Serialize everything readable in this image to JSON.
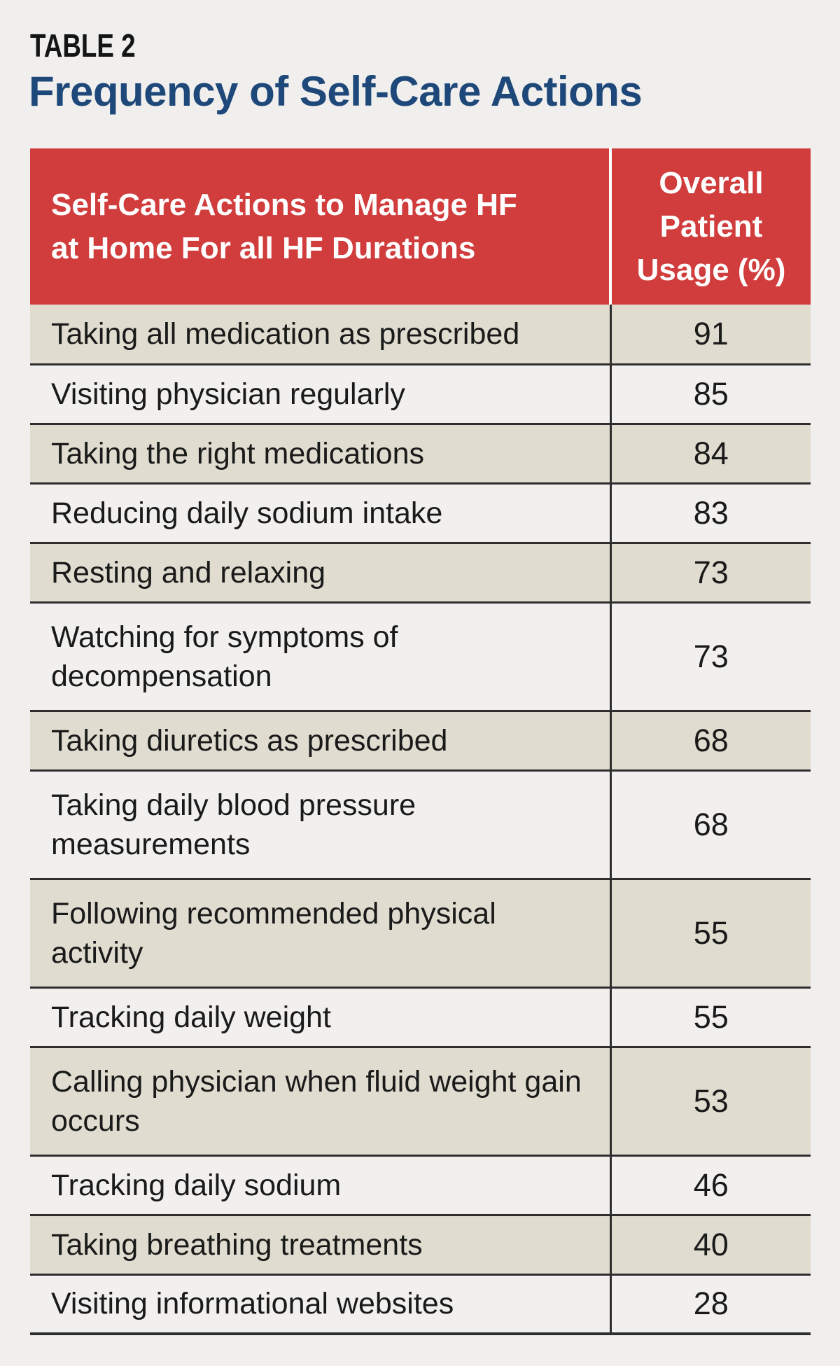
{
  "page": {
    "kicker": "TABLE 2",
    "title": "Frequency of Self-Care Actions"
  },
  "colors": {
    "header_bg": "#d13c3c",
    "header_text": "#ffffff",
    "title_blue": "#1e4879",
    "row_shaded": "#e0ddd0",
    "row_plain": "#f1f0ee",
    "grid_line": "#2e2e2e",
    "page_bg": "#f0efed"
  },
  "table": {
    "header": {
      "col1_lines": [
        "Self-Care Actions to Manage HF",
        "at Home For all HF Durations"
      ],
      "col2_lines": [
        "Overall",
        "Patient",
        "Usage (%)"
      ]
    },
    "rows": [
      {
        "action": "Taking all medication as prescribed",
        "usage": "91"
      },
      {
        "action": "Visiting physician regularly",
        "usage": "85"
      },
      {
        "action": "Taking the right medications",
        "usage": "84"
      },
      {
        "action": "Reducing daily sodium intake",
        "usage": "83"
      },
      {
        "action": "Resting and relaxing",
        "usage": "73"
      },
      {
        "action": "Watching for symptoms of decompensation",
        "usage": "73"
      },
      {
        "action": "Taking diuretics as prescribed",
        "usage": "68"
      },
      {
        "action": "Taking daily blood pressure measurements",
        "usage": "68"
      },
      {
        "action": "Following recommended physical activity",
        "usage": "55"
      },
      {
        "action": "Tracking daily weight",
        "usage": "55"
      },
      {
        "action": "Calling physician when fluid weight gain occurs",
        "usage": "53"
      },
      {
        "action": "Tracking daily sodium",
        "usage": "46"
      },
      {
        "action": "Taking breathing treatments",
        "usage": "40"
      },
      {
        "action": "Visiting informational websites",
        "usage": "28"
      }
    ]
  },
  "chart_data": {
    "type": "table",
    "title": "Frequency of Self-Care Actions",
    "table_label": "TABLE 2",
    "columns": [
      "Self-Care Actions to Manage HF at Home For all HF Durations",
      "Overall Patient Usage (%)"
    ],
    "categories": [
      "Taking all medication as prescribed",
      "Visiting physician regularly",
      "Taking the right medications",
      "Reducing daily sodium intake",
      "Resting and relaxing",
      "Watching for symptoms of decompensation",
      "Taking diuretics as prescribed",
      "Taking daily blood pressure measurements",
      "Following recommended physical activity",
      "Tracking daily weight",
      "Calling physician when fluid weight gain occurs",
      "Tracking daily sodium",
      "Taking breathing treatments",
      "Visiting informational websites"
    ],
    "values": [
      91,
      85,
      84,
      83,
      73,
      73,
      68,
      68,
      55,
      55,
      53,
      46,
      40,
      28
    ],
    "value_unit": "percent"
  }
}
